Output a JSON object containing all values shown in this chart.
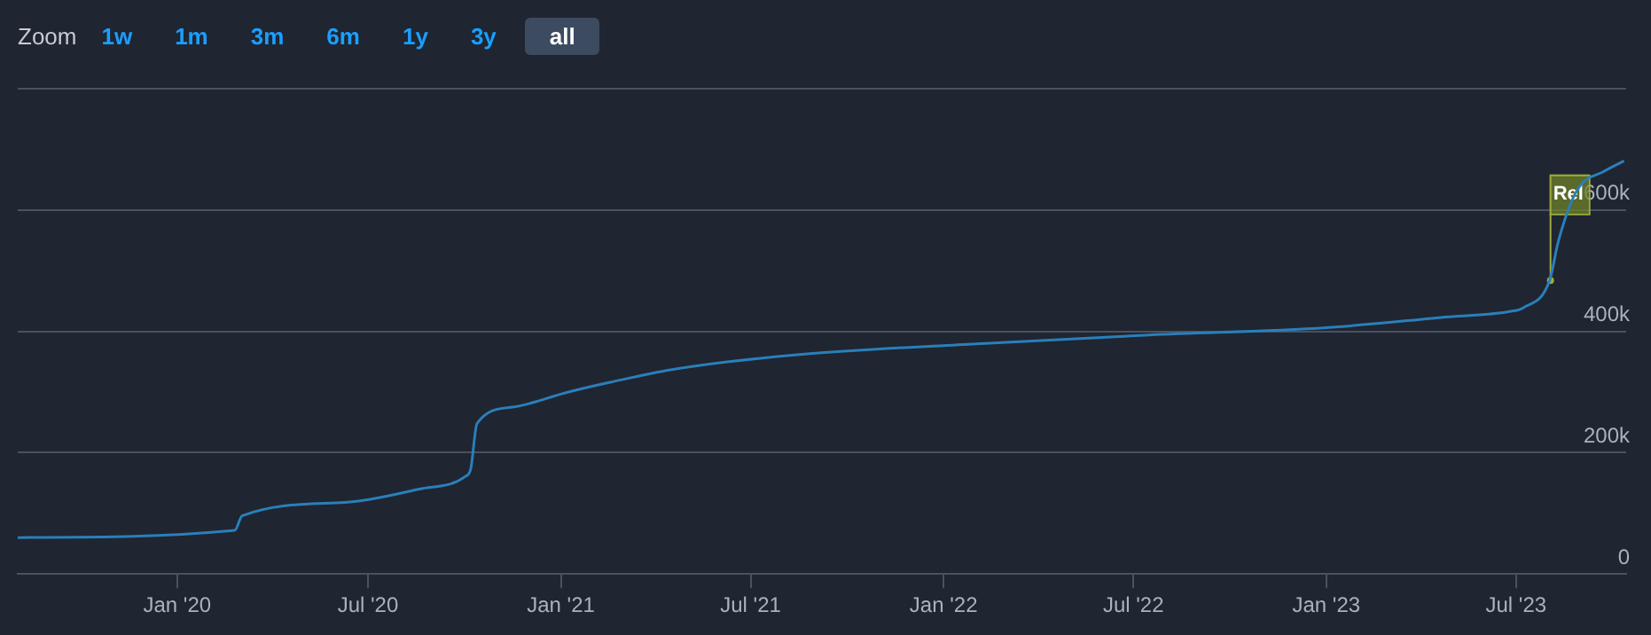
{
  "chart_data": {
    "type": "line",
    "x": [
      "2019-08-02",
      "2020-02-25",
      "2020-03-03",
      "2020-06-09",
      "2020-08-19",
      "2020-10-02",
      "2020-10-07",
      "2020-10-13",
      "2020-11-16",
      "2021-01-06",
      "2021-02-17",
      "2021-04-17",
      "2021-08-12",
      "2022-01-28",
      "2022-07-16",
      "2023-01-01",
      "2023-04-28",
      "2023-06-26",
      "2023-07-08",
      "2023-08-02",
      "2023-08-10",
      "2023-08-21",
      "2023-09-01",
      "2023-09-22",
      "2023-10-12"
    ],
    "series": [
      {
        "color": "#2a7fba",
        "values": [
          60000,
          72000,
          96000,
          118000,
          140000,
          161000,
          173000,
          248000,
          275000,
          299000,
          316000,
          337000,
          361000,
          379000,
          394000,
          406000,
          424000,
          433000,
          439000,
          484000,
          546000,
          606000,
          642000,
          663000,
          681000
        ]
      }
    ],
    "xlim": [
      "2019-08-02",
      "2023-10-14"
    ],
    "xticks": [
      {
        "value": "2020-01-01",
        "label": "Jan '20"
      },
      {
        "value": "2020-07-01",
        "label": "Jul '20"
      },
      {
        "value": "2021-01-01",
        "label": "Jan '21"
      },
      {
        "value": "2021-07-01",
        "label": "Jul '21"
      },
      {
        "value": "2022-01-01",
        "label": "Jan '22"
      },
      {
        "value": "2022-07-01",
        "label": "Jul '22"
      },
      {
        "value": "2023-01-01",
        "label": "Jan '23"
      },
      {
        "value": "2023-07-01",
        "label": "Jul '23"
      }
    ],
    "ylim": [
      0,
      800000
    ],
    "yticks": [
      {
        "value": 0,
        "label": "0"
      },
      {
        "value": 200000,
        "label": "200k"
      },
      {
        "value": 400000,
        "label": "400k"
      },
      {
        "value": 600000,
        "label": "600k"
      },
      {
        "value": 800000,
        "label": null
      }
    ],
    "grid": "y",
    "legend": false,
    "marker": "none",
    "line_style": "solid",
    "annotations": [
      "Zoom",
      "1w",
      "1m",
      "3m",
      "6m",
      "1y",
      "3y",
      "all",
      {
        "text": "Rel",
        "x": "2023-08-02",
        "y": 484000
      }
    ]
  }
}
